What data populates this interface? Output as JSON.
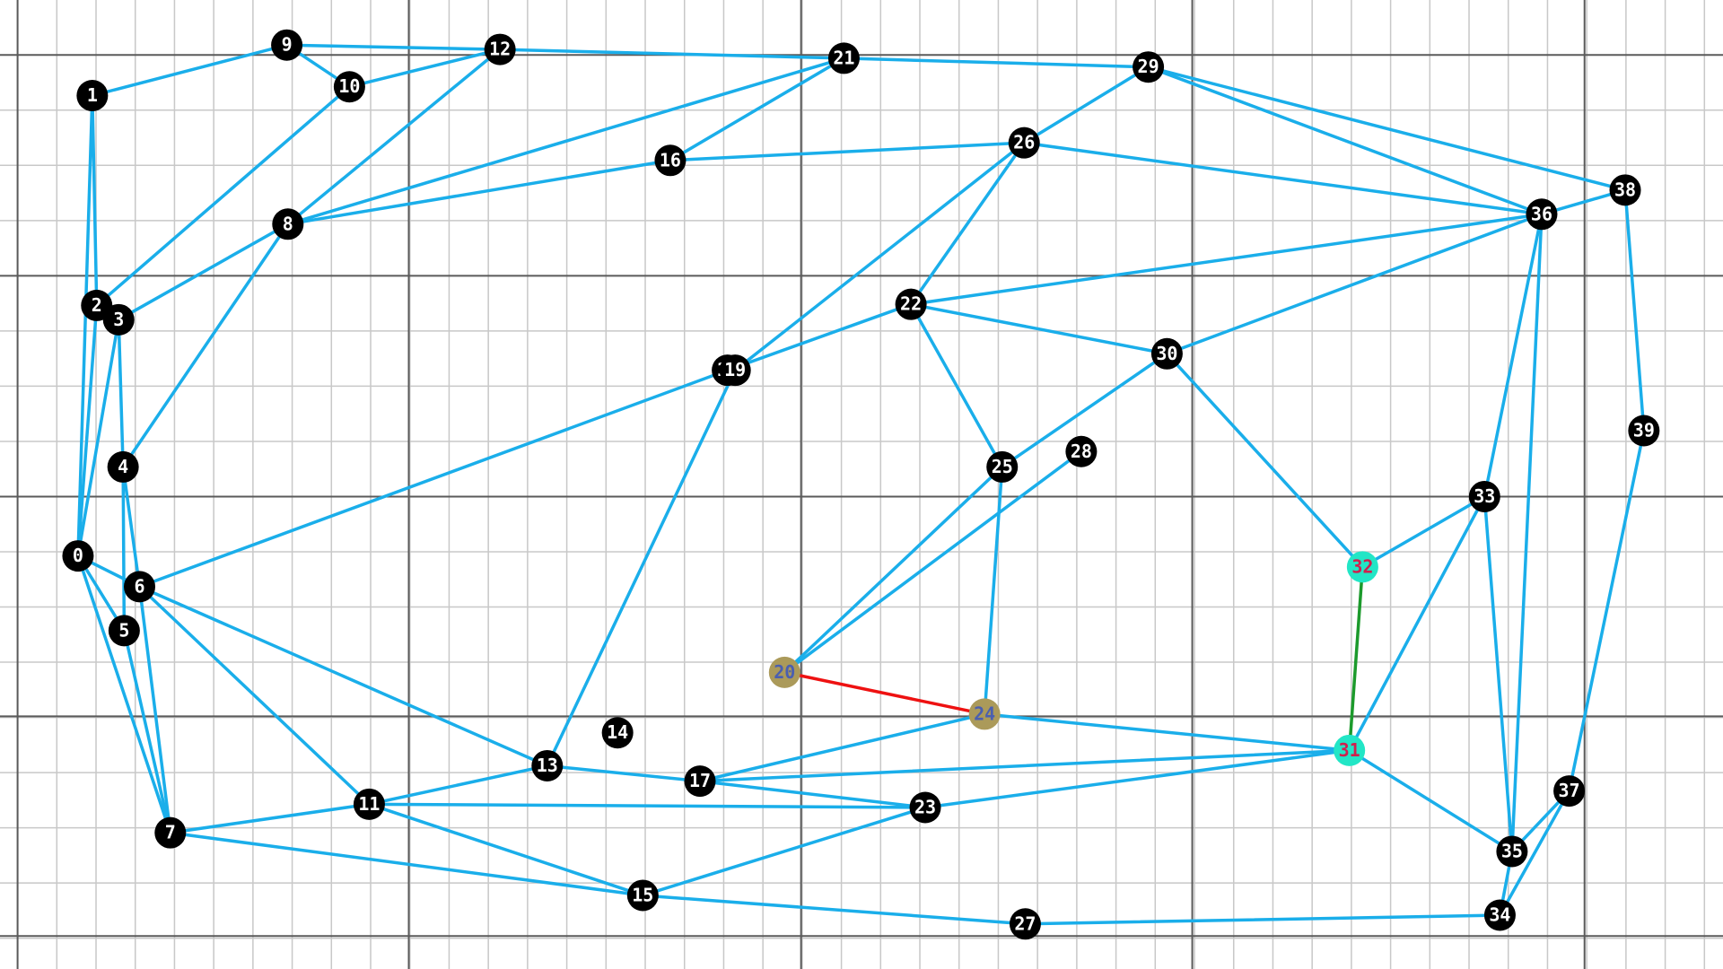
{
  "graph": {
    "colors": {
      "default_node_fill": "#000000",
      "default_node_text": "#ffffff",
      "edge": "#1aaeea",
      "highlight_a_fill": "#ab9a5a",
      "highlight_a_text": "#4a5fb0",
      "highlight_b_fill": "#22e6c6",
      "highlight_b_text": "#d0204e",
      "highlight_edge_a": "#ee1111",
      "highlight_edge_b": "#1c9a2c"
    },
    "nodes": [
      {
        "id": "0"
      },
      {
        "id": "1"
      },
      {
        "id": "2"
      },
      {
        "id": "3"
      },
      {
        "id": "4"
      },
      {
        "id": "5"
      },
      {
        "id": "6"
      },
      {
        "id": "7"
      },
      {
        "id": "8"
      },
      {
        "id": "9"
      },
      {
        "id": "10"
      },
      {
        "id": "11"
      },
      {
        "id": "12"
      },
      {
        "id": "13"
      },
      {
        "id": "14"
      },
      {
        "id": "15"
      },
      {
        "id": "16"
      },
      {
        "id": "17"
      },
      {
        "id": "18"
      },
      {
        "id": "19"
      },
      {
        "id": "20",
        "highlight": "a"
      },
      {
        "id": "21"
      },
      {
        "id": "22"
      },
      {
        "id": "23"
      },
      {
        "id": "24",
        "highlight": "a"
      },
      {
        "id": "25"
      },
      {
        "id": "26"
      },
      {
        "id": "27"
      },
      {
        "id": "28"
      },
      {
        "id": "29"
      },
      {
        "id": "30"
      },
      {
        "id": "31",
        "highlight": "b"
      },
      {
        "id": "32",
        "highlight": "b"
      },
      {
        "id": "33"
      },
      {
        "id": "34"
      },
      {
        "id": "35"
      },
      {
        "id": "36"
      },
      {
        "id": "37"
      },
      {
        "id": "38"
      },
      {
        "id": "39"
      }
    ],
    "edges": [
      [
        "1",
        "9"
      ],
      [
        "9",
        "10"
      ],
      [
        "9",
        "12"
      ],
      [
        "10",
        "12"
      ],
      [
        "12",
        "21"
      ],
      [
        "21",
        "29"
      ],
      [
        "1",
        "2"
      ],
      [
        "1",
        "0"
      ],
      [
        "10",
        "2"
      ],
      [
        "12",
        "8"
      ],
      [
        "8",
        "21"
      ],
      [
        "8",
        "16"
      ],
      [
        "16",
        "26"
      ],
      [
        "16",
        "21"
      ],
      [
        "8",
        "3"
      ],
      [
        "8",
        "4"
      ],
      [
        "2",
        "3"
      ],
      [
        "2",
        "0"
      ],
      [
        "3",
        "0"
      ],
      [
        "3",
        "4"
      ],
      [
        "4",
        "5"
      ],
      [
        "4",
        "6"
      ],
      [
        "0",
        "6"
      ],
      [
        "0",
        "5"
      ],
      [
        "0",
        "7"
      ],
      [
        "5",
        "7"
      ],
      [
        "6",
        "7"
      ],
      [
        "6",
        "11"
      ],
      [
        "6",
        "13"
      ],
      [
        "6",
        "18"
      ],
      [
        "7",
        "11"
      ],
      [
        "7",
        "15"
      ],
      [
        "11",
        "13"
      ],
      [
        "11",
        "15"
      ],
      [
        "11",
        "23"
      ],
      [
        "13",
        "17"
      ],
      [
        "13",
        "19"
      ],
      [
        "15",
        "23"
      ],
      [
        "15",
        "27"
      ],
      [
        "27",
        "34"
      ],
      [
        "17",
        "23"
      ],
      [
        "17",
        "24"
      ],
      [
        "17",
        "31"
      ],
      [
        "23",
        "31"
      ],
      [
        "24",
        "31"
      ],
      [
        "24",
        "25"
      ],
      [
        "20",
        "25"
      ],
      [
        "20",
        "28"
      ],
      [
        "25",
        "22"
      ],
      [
        "25",
        "30"
      ],
      [
        "22",
        "18"
      ],
      [
        "22",
        "26"
      ],
      [
        "22",
        "30"
      ],
      [
        "22",
        "36"
      ],
      [
        "26",
        "29"
      ],
      [
        "26",
        "36"
      ],
      [
        "26",
        "19"
      ],
      [
        "29",
        "36"
      ],
      [
        "29",
        "38"
      ],
      [
        "36",
        "38"
      ],
      [
        "36",
        "30"
      ],
      [
        "30",
        "32"
      ],
      [
        "32",
        "33"
      ],
      [
        "31",
        "33"
      ],
      [
        "31",
        "35"
      ],
      [
        "33",
        "36"
      ],
      [
        "33",
        "35"
      ],
      [
        "35",
        "36"
      ],
      [
        "35",
        "34"
      ],
      [
        "34",
        "37"
      ],
      [
        "35",
        "37"
      ],
      [
        "37",
        "39"
      ],
      [
        "38",
        "39"
      ]
    ],
    "highlight_edges": [
      {
        "from": "20",
        "to": "24",
        "style": "a"
      },
      {
        "from": "32",
        "to": "31",
        "style": "b"
      }
    ]
  }
}
